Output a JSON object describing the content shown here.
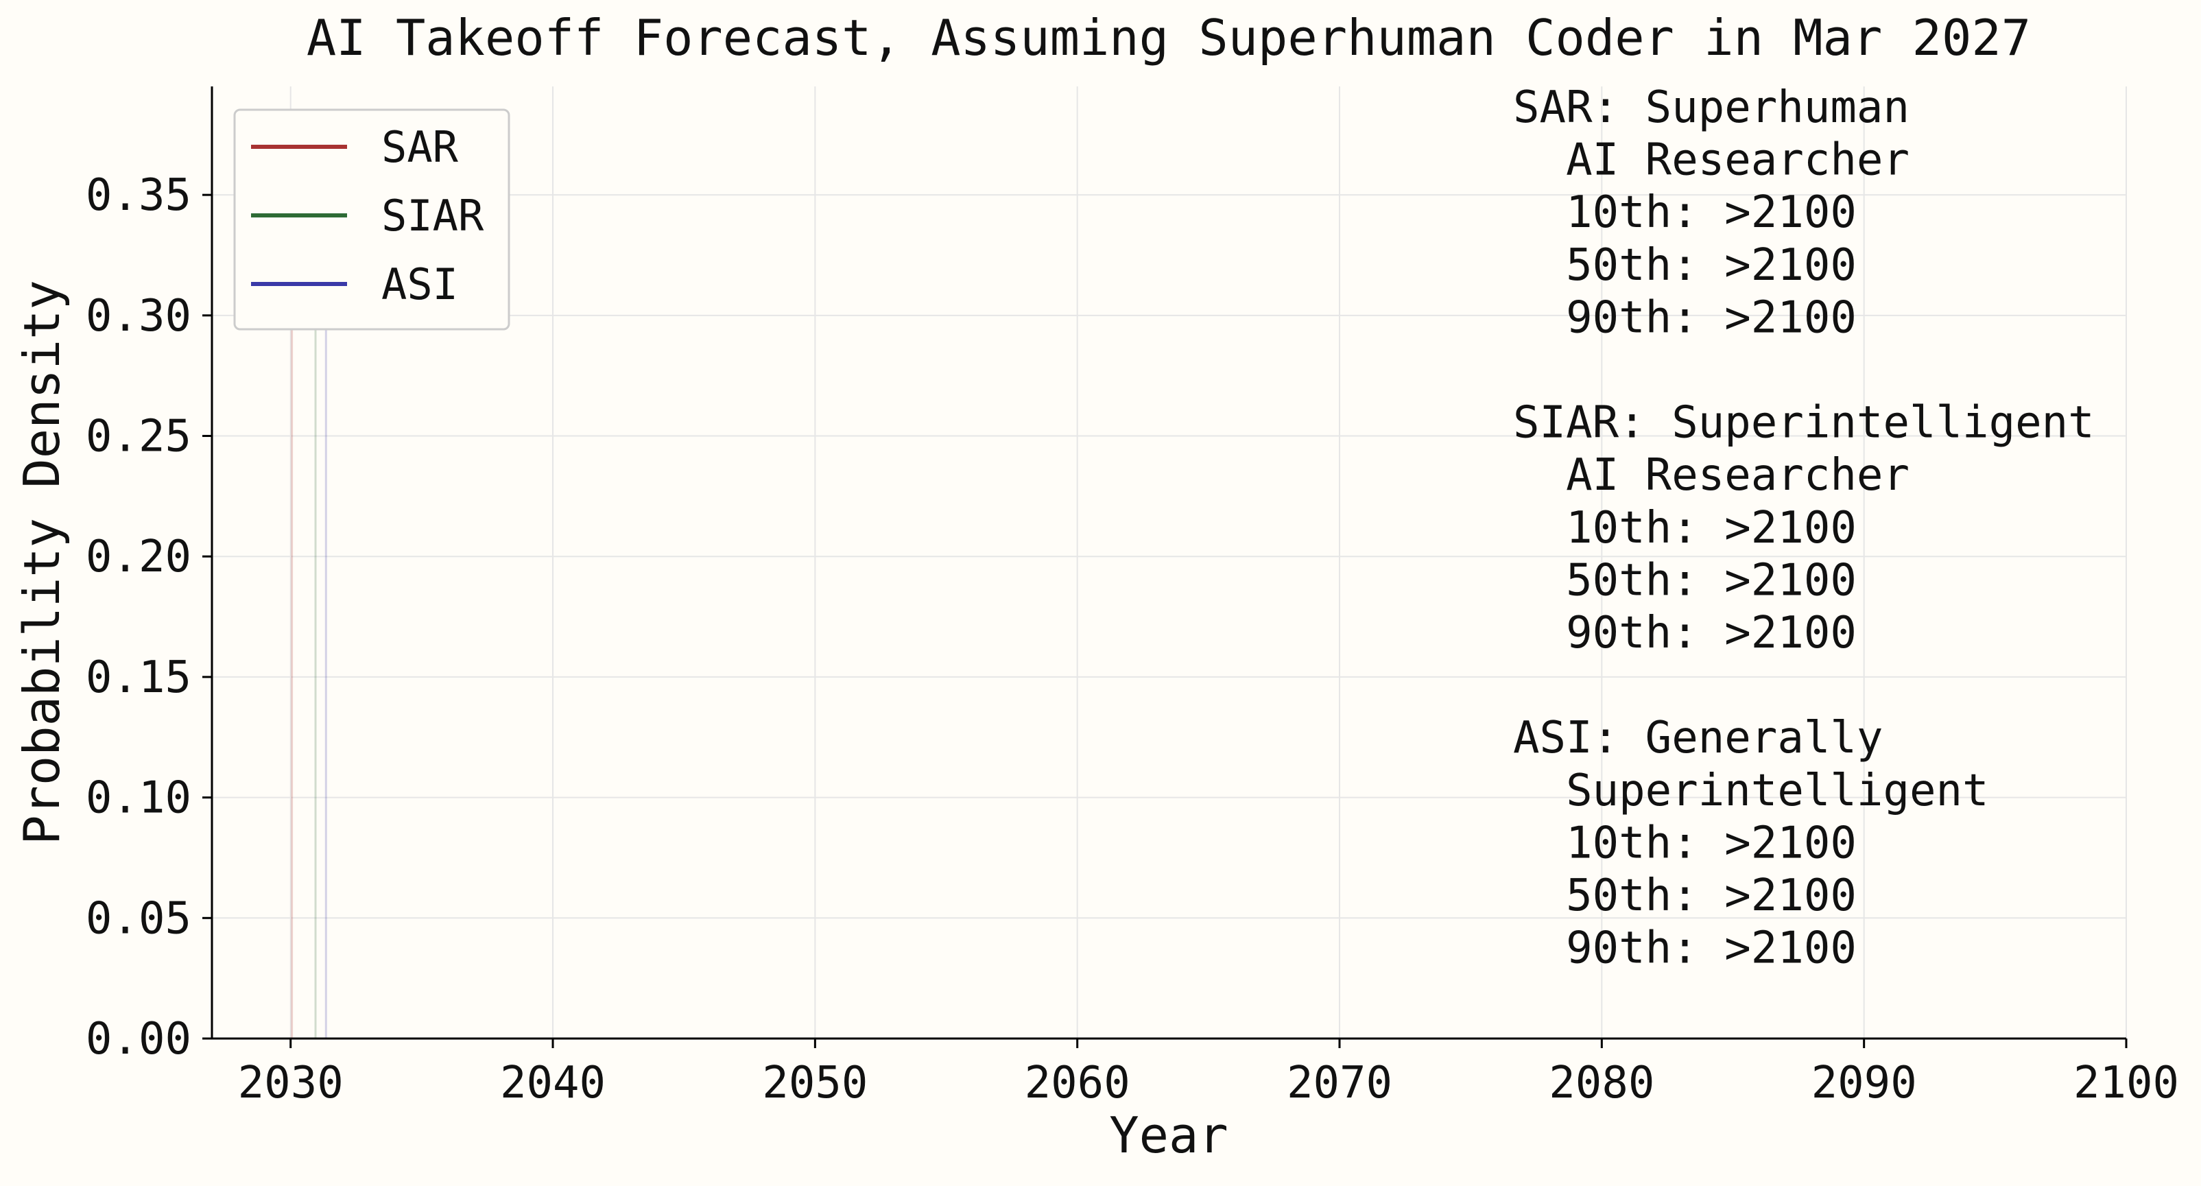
{
  "chart_data": {
    "type": "line",
    "title": "AI Takeoff Forecast, Assuming Superhuman Coder in Mar 2027",
    "xlabel": "Year",
    "ylabel": "Probability Density",
    "xlim": [
      2027,
      2100
    ],
    "ylim": [
      0,
      0.395
    ],
    "x_ticks": [
      2030,
      2040,
      2050,
      2060,
      2070,
      2080,
      2090,
      2100
    ],
    "x_tick_labels": [
      "2030",
      "2040",
      "2050",
      "2060",
      "2070",
      "2080",
      "2090",
      "2100"
    ],
    "y_ticks": [
      0,
      0.05,
      0.1,
      0.15,
      0.2,
      0.25,
      0.3,
      0.35
    ],
    "y_tick_labels": [
      "0.00",
      "0.05",
      "0.10",
      "0.15",
      "0.20",
      "0.25",
      "0.30",
      "0.35"
    ],
    "grid": true,
    "legend_position": "top-left",
    "series": [
      {
        "name": "SAR",
        "color": "#a83232",
        "x": [
          2030.05,
          2030.05
        ],
        "y": [
          0,
          0.31
        ]
      },
      {
        "name": "SIAR",
        "color": "#2e6b36",
        "x": [
          2030.95,
          2030.95
        ],
        "y": [
          0,
          0.33
        ]
      },
      {
        "name": "ASI",
        "color": "#3a3aa8",
        "x": [
          2031.35,
          2031.35
        ],
        "y": [
          0,
          0.31
        ]
      }
    ],
    "annotation_lines": [
      "SAR: Superhuman",
      "  AI Researcher",
      "  10th: >2100",
      "  50th: >2100",
      "  90th: >2100",
      "",
      "SIAR: Superintelligent",
      "  AI Researcher",
      "  10th: >2100",
      "  50th: >2100",
      "  90th: >2100",
      "",
      "ASI: Generally",
      "  Superintelligent",
      "  10th: >2100",
      "  50th: >2100",
      "  90th: >2100"
    ]
  }
}
